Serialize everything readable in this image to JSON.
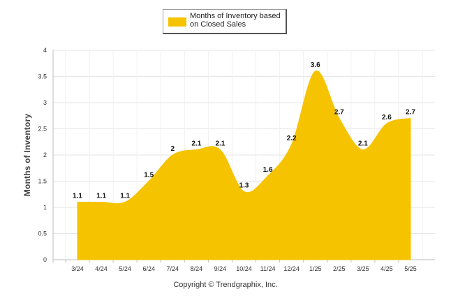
{
  "chart_data": {
    "type": "area",
    "series": [
      {
        "name": "Months of Inventory based on Closed Sales",
        "color": "#F5C300",
        "values": [
          1.1,
          1.1,
          1.1,
          1.5,
          2,
          2.1,
          2.1,
          1.3,
          1.6,
          2.2,
          3.6,
          2.7,
          2.1,
          2.6,
          2.7
        ]
      }
    ],
    "categories": [
      "3/24",
      "4/24",
      "5/24",
      "6/24",
      "7/24",
      "8/24",
      "9/24",
      "10/24",
      "11/24",
      "12/24",
      "1/25",
      "2/25",
      "3/25",
      "4/25",
      "5/25"
    ],
    "data_labels": [
      "1.1",
      "1.1",
      "1.1",
      "1.5",
      "2",
      "2.1",
      "2.1",
      "1.3",
      "1.6",
      "2.2",
      "3.6",
      "2.7",
      "2.1",
      "2.6",
      "2.7"
    ],
    "ylabel": "Months of Inventory",
    "xlabel": "",
    "ylim": [
      0,
      4
    ],
    "yticks": [
      "0",
      "0.5",
      "1",
      "1.5",
      "2",
      "2.5",
      "3",
      "3.5",
      "4"
    ],
    "grid": true,
    "legend_position": "top-center"
  },
  "legend": {
    "label": "Months of Inventory based on Closed Sales"
  },
  "copyright": "Copyright © Trendgraphix, Inc."
}
